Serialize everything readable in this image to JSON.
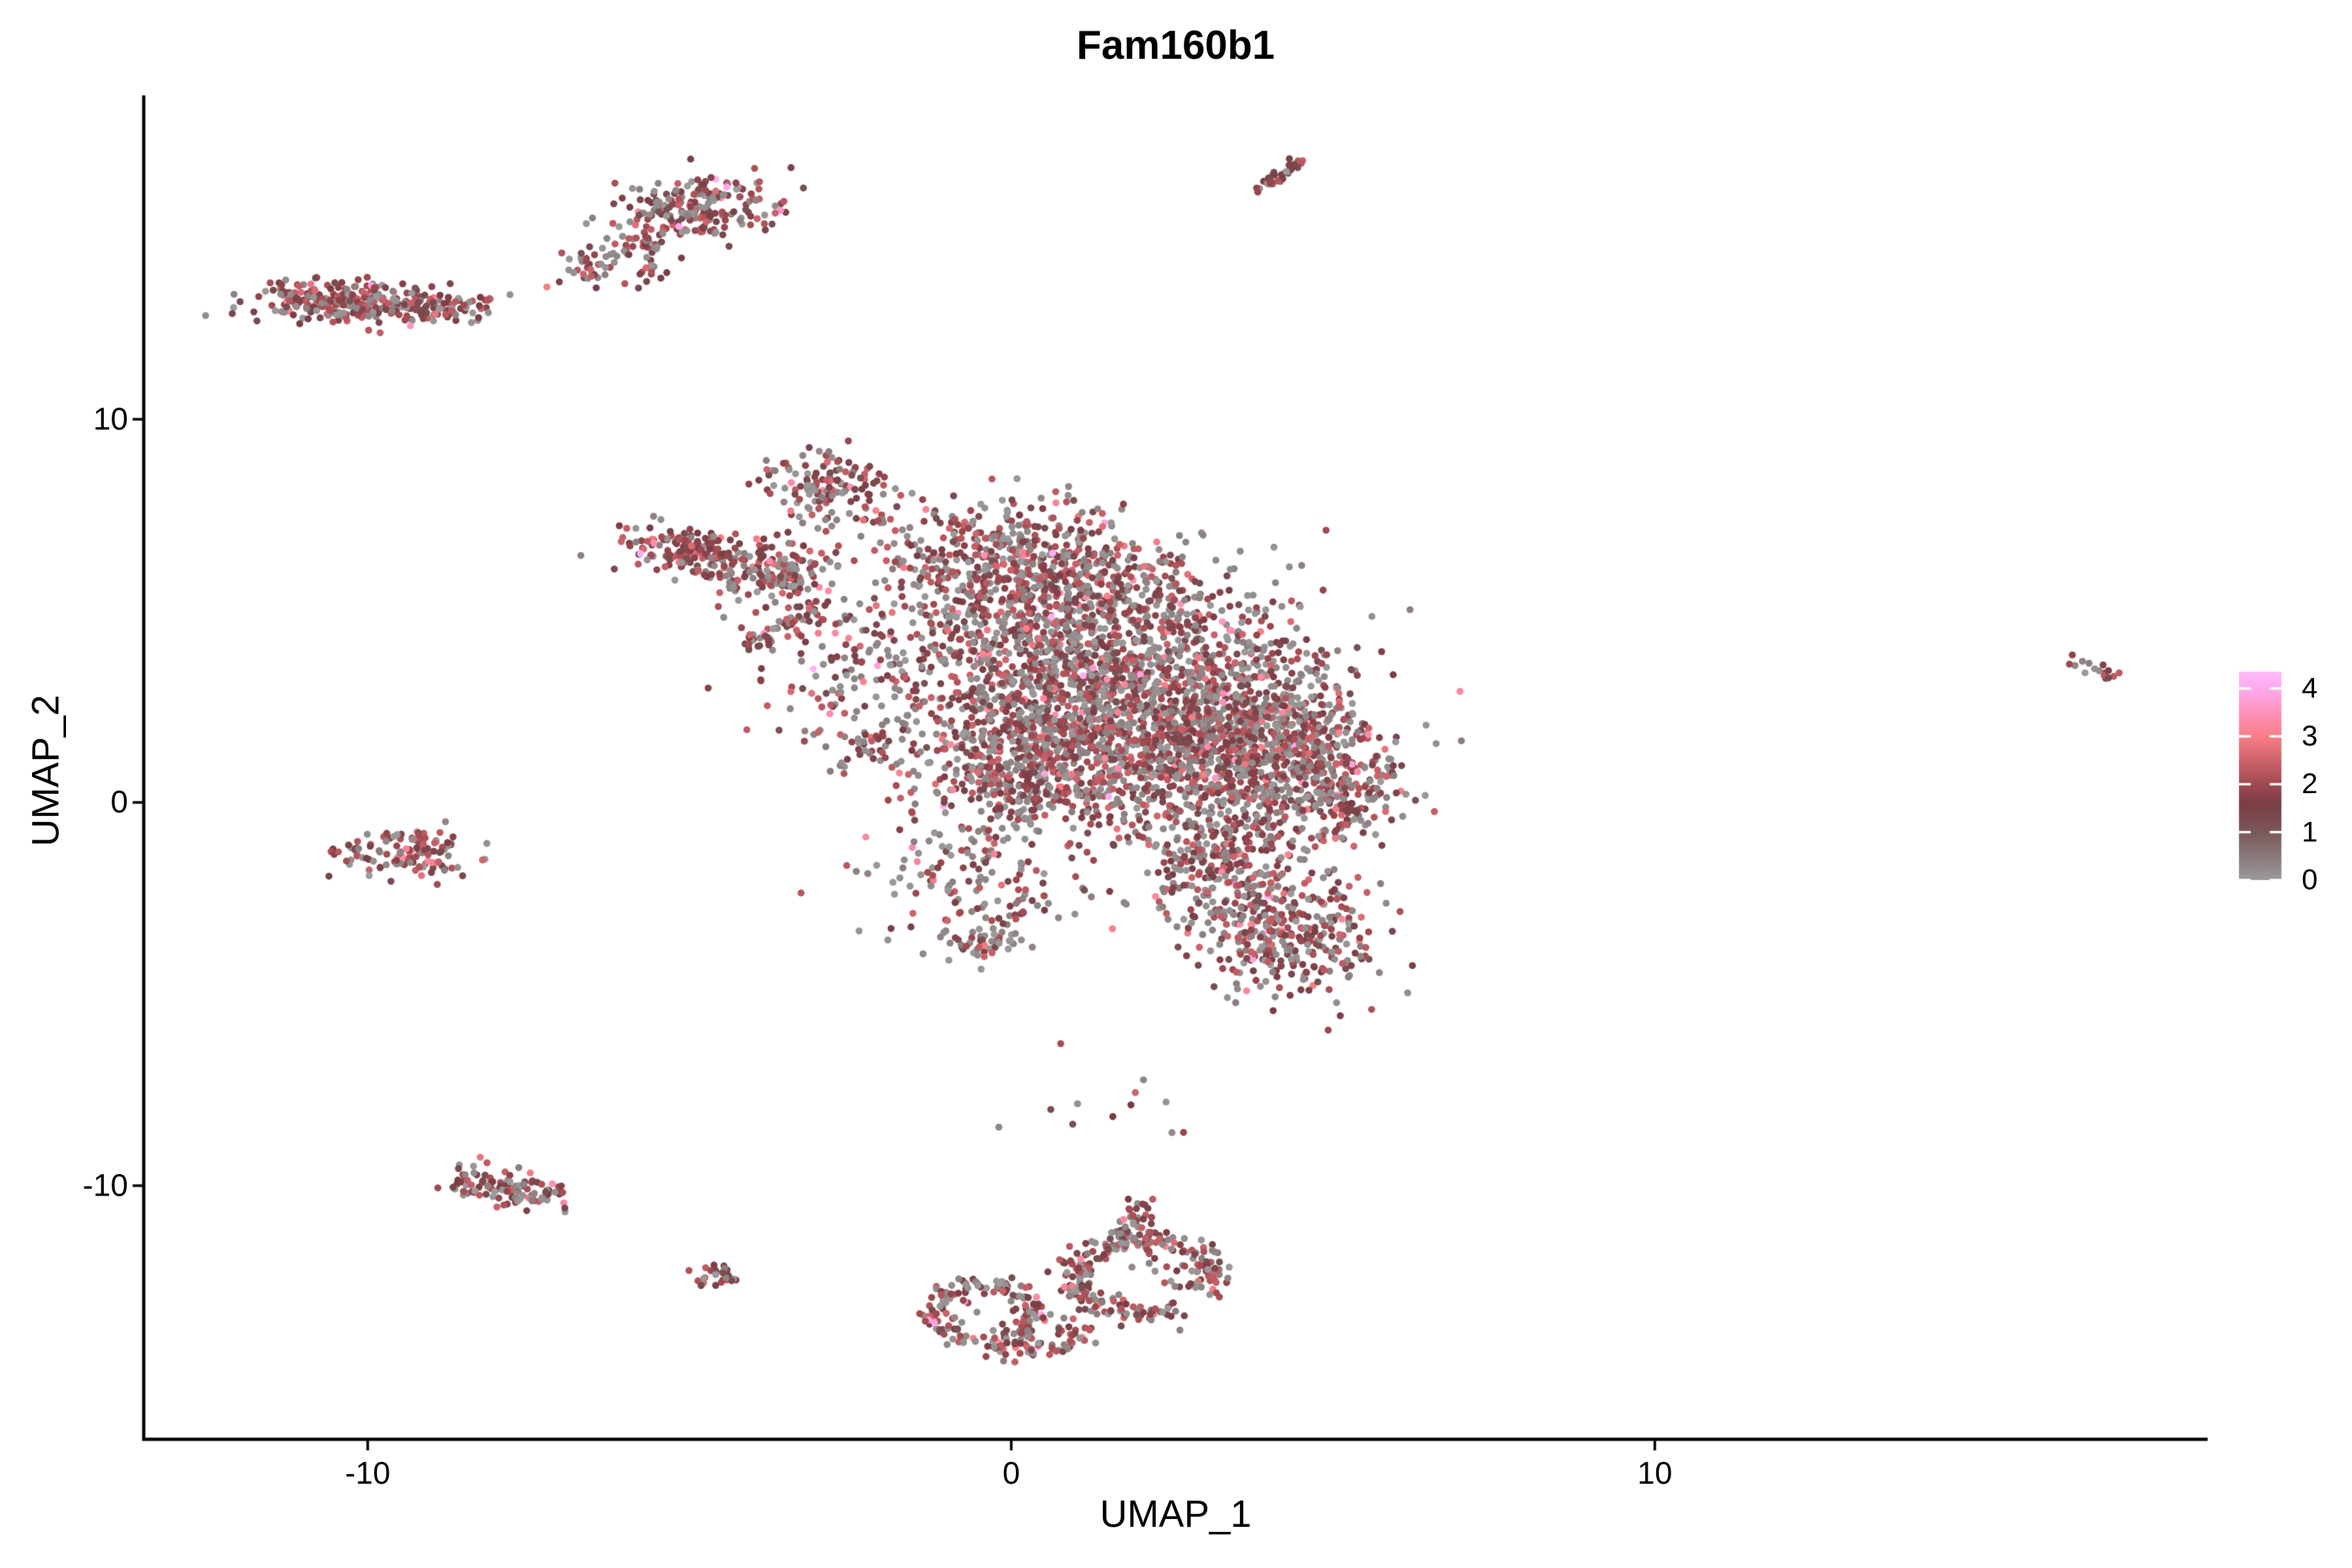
{
  "title": "Fam160b1",
  "axes": {
    "x": {
      "label": "UMAP_1",
      "tick_labels": [
        "-10",
        "0",
        "10"
      ],
      "tick_values": [
        -10,
        0,
        10
      ]
    },
    "y": {
      "label": "UMAP_2",
      "tick_labels": [
        "10",
        "0",
        "-10"
      ],
      "tick_values": [
        10,
        0,
        -10
      ]
    }
  },
  "legend": {
    "tick_labels": [
      "4",
      "3",
      "2",
      "1",
      "0"
    ],
    "tick_values": [
      4,
      3,
      2,
      1,
      0
    ],
    "range": [
      0,
      4.35
    ],
    "gradient_stops": [
      {
        "v": 0.0,
        "c": "#9B9B9B"
      },
      {
        "v": 1.0,
        "c": "#7A585A"
      },
      {
        "v": 1.6,
        "c": "#7B3E46"
      },
      {
        "v": 2.0,
        "c": "#A04A50"
      },
      {
        "v": 3.0,
        "c": "#FA7E87"
      },
      {
        "v": 4.0,
        "c": "#FFAAF0"
      },
      {
        "v": 4.35,
        "c": "#FFB9F8"
      }
    ]
  },
  "colors": {
    "axis": "#000000",
    "background": "#FFFFFF",
    "gray_point": "#9B9B9B",
    "dark_red_point": "#8D444B"
  },
  "chart_data": {
    "type": "scatter",
    "title": "Fam160b1",
    "xlabel": "UMAP_1",
    "ylabel": "UMAP_2",
    "xlim": [
      -13.48,
      18.59
    ],
    "ylim": [
      -16.62,
      18.45
    ],
    "grid": false,
    "legend_position": "right",
    "point_radius_px": 5.4,
    "expression_range": [
      0,
      4.35
    ],
    "clusters": [
      {
        "name": "left-bar",
        "type": "gauss",
        "cx": -10.35,
        "cy": 13.05,
        "sx": 0.72,
        "sy": 0.26,
        "rot": -4,
        "n": 260,
        "gray": 0.3
      },
      {
        "name": "left-bar-tail",
        "type": "gauss",
        "cx": -8.95,
        "cy": 12.95,
        "sx": 0.45,
        "sy": 0.17,
        "rot": -6,
        "n": 70,
        "gray": 0.45
      },
      {
        "name": "left-bar-dot",
        "type": "gauss",
        "cx": -8.15,
        "cy": 13.1,
        "sx": 0.05,
        "sy": 0.05,
        "rot": 0,
        "n": 4,
        "gray": 0.2
      },
      {
        "name": "top-blob",
        "type": "gauss",
        "cx": -4.95,
        "cy": 15.45,
        "sx": 0.62,
        "sy": 0.42,
        "rot": 20,
        "n": 210,
        "gray": 0.35
      },
      {
        "name": "top-blob-tail",
        "type": "line",
        "x1": -6.85,
        "y1": 13.8,
        "x2": -5.45,
        "y2": 14.75,
        "w": 0.2,
        "n": 60,
        "gray": 0.4
      },
      {
        "name": "top-blob-drip",
        "type": "gauss",
        "cx": -5.75,
        "cy": 13.75,
        "sx": 0.18,
        "sy": 0.22,
        "rot": 0,
        "n": 12,
        "gray": 0.3
      },
      {
        "name": "top-streak",
        "type": "line",
        "x1": 3.86,
        "y1": 16.0,
        "x2": 4.55,
        "y2": 16.85,
        "w": 0.07,
        "n": 38,
        "gray": 0.1
      },
      {
        "name": "far-right-dots",
        "type": "line",
        "x1": 16.5,
        "y1": 3.85,
        "x2": 17.15,
        "y2": 3.3,
        "w": 0.12,
        "n": 16,
        "gray": 0.25
      },
      {
        "name": "left-mid-blob",
        "type": "gauss",
        "cx": -9.45,
        "cy": -1.4,
        "sx": 0.52,
        "sy": 0.26,
        "rot": -8,
        "n": 105,
        "gray": 0.3
      },
      {
        "name": "left-mid-top",
        "type": "gauss",
        "cx": -9.2,
        "cy": -0.9,
        "sx": 0.3,
        "sy": 0.15,
        "rot": 0,
        "n": 25,
        "gray": 0.3
      },
      {
        "name": "bottom-left-band",
        "type": "line",
        "x1": -8.55,
        "y1": -9.85,
        "x2": -7.0,
        "y2": -10.35,
        "w": 0.22,
        "n": 115,
        "gray": 0.35
      },
      {
        "name": "tiny-blob",
        "type": "gauss",
        "cx": -4.55,
        "cy": -12.35,
        "sx": 0.17,
        "sy": 0.17,
        "rot": 0,
        "n": 30,
        "gray": 0.35
      },
      {
        "name": "ring-left",
        "type": "ring",
        "cx": -0.42,
        "cy": -13.35,
        "rx": 0.78,
        "ry": 0.72,
        "w": 0.22,
        "a1": 0,
        "a2": 360,
        "n": 150,
        "gray": 0.4
      },
      {
        "name": "ring-left-inner",
        "type": "gauss",
        "cx": -0.45,
        "cy": -13.3,
        "sx": 0.3,
        "sy": 0.3,
        "rot": 0,
        "n": 7,
        "gray": 0.6
      },
      {
        "name": "horseshoe",
        "type": "ring",
        "cx": 2.05,
        "cy": -12.35,
        "rx": 1.1,
        "ry": 0.95,
        "w": 0.28,
        "a1": -30,
        "a2": 300,
        "n": 230,
        "gray": 0.4
      },
      {
        "name": "horseshoe-inner",
        "type": "gauss",
        "cx": 2.3,
        "cy": -12.3,
        "sx": 0.45,
        "sy": 0.35,
        "rot": 0,
        "n": 14,
        "gray": 0.55
      },
      {
        "name": "bottom-bridge",
        "type": "line",
        "x1": -0.15,
        "y1": -14.4,
        "x2": 1.35,
        "y2": -13.75,
        "w": 0.22,
        "n": 65,
        "gray": 0.4
      },
      {
        "name": "horseshoe-stem",
        "type": "line",
        "x1": 1.8,
        "y1": -11.45,
        "x2": 2.05,
        "y2": -10.5,
        "w": 0.16,
        "n": 40,
        "gray": 0.4
      },
      {
        "name": "beak",
        "type": "gauss",
        "cx": -4.95,
        "cy": 6.55,
        "sx": 0.55,
        "sy": 0.3,
        "rot": -22,
        "n": 170,
        "gray": 0.22
      },
      {
        "name": "knot",
        "type": "gauss",
        "cx": -3.75,
        "cy": 6.0,
        "sx": 0.5,
        "sy": 0.4,
        "rot": 0,
        "n": 150,
        "gray": 0.35
      },
      {
        "name": "top-arm",
        "type": "gauss",
        "cx": -2.85,
        "cy": 8.2,
        "sx": 0.42,
        "sy": 0.55,
        "rot": 35,
        "n": 140,
        "gray": 0.35
      },
      {
        "name": "streaklet",
        "type": "line",
        "x1": -4.1,
        "y1": 4.05,
        "x2": -3.0,
        "y2": 5.15,
        "w": 0.12,
        "n": 45,
        "gray": 0.28
      },
      {
        "name": "left-scatter",
        "type": "gauss",
        "cx": -2.5,
        "cy": 4.0,
        "sx": 0.8,
        "sy": 1.3,
        "rot": 0,
        "n": 110,
        "gray": 0.42
      },
      {
        "name": "left-lower-dots",
        "type": "gauss",
        "cx": -2.3,
        "cy": 1.5,
        "sx": 0.4,
        "sy": 0.35,
        "rot": 0,
        "n": 40,
        "gray": 0.4
      },
      {
        "name": "main-top",
        "type": "gauss",
        "cx": 0.4,
        "cy": 6.1,
        "sx": 1.25,
        "sy": 0.8,
        "rot": -12,
        "n": 650,
        "gray": 0.42
      },
      {
        "name": "main-core",
        "type": "gauss",
        "cx": 1.2,
        "cy": 3.4,
        "sx": 1.55,
        "sy": 1.25,
        "rot": 0,
        "n": 1400,
        "gray": 0.42
      },
      {
        "name": "main-right",
        "type": "gauss",
        "cx": 2.9,
        "cy": 1.2,
        "sx": 1.35,
        "sy": 1.05,
        "rot": -15,
        "n": 1050,
        "gray": 0.42
      },
      {
        "name": "main-left-low",
        "type": "gauss",
        "cx": 0.2,
        "cy": 0.9,
        "sx": 0.85,
        "sy": 0.85,
        "rot": 0,
        "n": 420,
        "gray": 0.45
      },
      {
        "name": "right-band",
        "type": "gauss",
        "cx": 4.05,
        "cy": 2.2,
        "sx": 0.75,
        "sy": 0.9,
        "rot": 0,
        "n": 280,
        "gray": 0.4
      },
      {
        "name": "right-tip",
        "type": "gauss",
        "cx": 5.0,
        "cy": 0.4,
        "sx": 0.5,
        "sy": 0.75,
        "rot": 0,
        "n": 210,
        "gray": 0.38
      },
      {
        "name": "lobe-bridge",
        "type": "gauss",
        "cx": 3.3,
        "cy": -1.5,
        "sx": 0.65,
        "sy": 0.8,
        "rot": 0,
        "n": 240,
        "gray": 0.42
      },
      {
        "name": "bottom-lobe",
        "type": "gauss",
        "cx": 4.25,
        "cy": -3.4,
        "sx": 0.7,
        "sy": 0.8,
        "rot": 15,
        "n": 330,
        "gray": 0.33
      },
      {
        "name": "below-scatter",
        "type": "gauss",
        "cx": -0.5,
        "cy": -2.0,
        "sx": 0.85,
        "sy": 1.0,
        "rot": 0,
        "n": 150,
        "gray": 0.5
      },
      {
        "name": "below-knot",
        "type": "gauss",
        "cx": -0.45,
        "cy": -3.6,
        "sx": 0.28,
        "sy": 0.22,
        "rot": 0,
        "n": 45,
        "gray": 0.38
      },
      {
        "name": "strays",
        "type": "gauss",
        "cx": 1.2,
        "cy": -7.8,
        "sx": 1.2,
        "sy": 0.9,
        "rot": 0,
        "n": 12,
        "gray": 0.5
      }
    ]
  }
}
